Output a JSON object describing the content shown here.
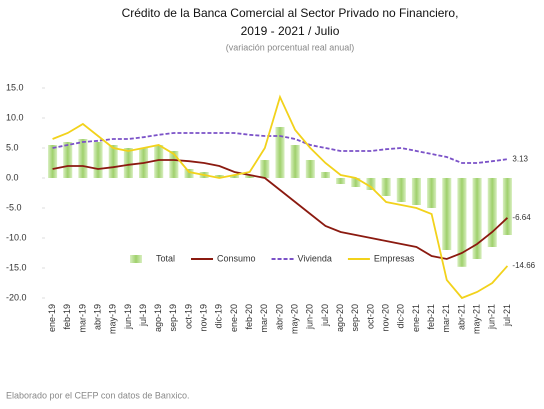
{
  "chart_data": {
    "type": "bar_line",
    "title": "Crédito de la Banca Comercial al Sector Privado no Financiero,",
    "subtitle": "2019 - 2021 / Julio",
    "y_label": "(variación porcentual real anual)",
    "source": "Elaborado por el CEFP con datos de Banxico.",
    "categories": [
      "ene-19",
      "feb-19",
      "mar-19",
      "abr-19",
      "may-19",
      "jun-19",
      "jul-19",
      "ago-19",
      "sep-19",
      "oct-19",
      "nov-19",
      "dic-19",
      "ene-20",
      "feb-20",
      "mar-20",
      "abr-20",
      "may-20",
      "jun-20",
      "jul-20",
      "ago-20",
      "sep-20",
      "oct-20",
      "nov-20",
      "dic-20",
      "ene-21",
      "feb-21",
      "mar-21",
      "abr-21",
      "may-21",
      "jun-21",
      "jul-21"
    ],
    "ylim": [
      -20,
      15
    ],
    "yticks": [
      {
        "value": 15,
        "label": "15.0"
      },
      {
        "value": 10,
        "label": "10.0"
      },
      {
        "value": 5,
        "label": "5.0"
      },
      {
        "value": 0,
        "label": "0.0"
      },
      {
        "value": -5,
        "label": "-5.0"
      },
      {
        "value": -10,
        "label": "-10.0"
      },
      {
        "value": -15,
        "label": "-15.0"
      },
      {
        "value": -20,
        "label": "-20.0"
      }
    ],
    "legend": "center",
    "series": [
      {
        "name": "Total",
        "kind": "bar",
        "color": "#b5dc8e",
        "values": [
          5.5,
          6,
          6.5,
          6,
          5.5,
          5,
          5,
          5.5,
          4.5,
          1.5,
          1,
          0.5,
          0.5,
          0.5,
          3,
          8.5,
          5.5,
          3,
          1,
          -1,
          -1.5,
          -2,
          -3,
          -4,
          -4.5,
          -5,
          -12,
          -14.8,
          -13.5,
          -11.5,
          -9.5
        ]
      },
      {
        "name": "Consumo",
        "kind": "line",
        "color": "#8b1a10",
        "values": [
          1.5,
          2,
          2,
          1.5,
          1.8,
          2.2,
          2.5,
          3,
          3,
          2.8,
          2.5,
          2,
          1,
          0.5,
          0,
          -2,
          -4,
          -6,
          -8,
          -9,
          -9.5,
          -10,
          -10.5,
          -11,
          -11.5,
          -13,
          -13.5,
          -12.5,
          -11,
          -9,
          -6.64
        ],
        "value_labels": [
          null,
          null,
          null,
          null,
          null,
          null,
          null,
          null,
          null,
          null,
          null,
          null,
          null,
          null,
          null,
          null,
          null,
          null,
          null,
          null,
          null,
          null,
          null,
          null,
          null,
          null,
          null,
          null,
          null,
          null,
          "-6.64"
        ]
      },
      {
        "name": "Vivienda",
        "kind": "dashed",
        "color": "#7b52c8",
        "values": [
          5,
          5.5,
          6,
          6.2,
          6.5,
          6.5,
          6.8,
          7.2,
          7.5,
          7.5,
          7.5,
          7.5,
          7.5,
          7.2,
          7,
          7,
          6.5,
          5.5,
          5,
          4.5,
          4.5,
          4.5,
          4.8,
          5,
          4.5,
          4,
          3.5,
          2.5,
          2.5,
          2.8,
          3.13
        ],
        "value_labels": [
          null,
          null,
          null,
          null,
          null,
          null,
          null,
          null,
          null,
          null,
          null,
          null,
          null,
          null,
          null,
          null,
          null,
          null,
          null,
          null,
          null,
          null,
          null,
          null,
          null,
          null,
          null,
          null,
          null,
          null,
          "3.13"
        ]
      },
      {
        "name": "Empresas",
        "kind": "line",
        "color": "#f2d21b",
        "values": [
          6.5,
          7.5,
          9,
          7,
          5,
          4.5,
          5,
          5.5,
          4,
          1,
          0.5,
          0,
          0.5,
          1,
          5,
          13.5,
          8,
          5,
          2.5,
          0.5,
          0,
          -1.5,
          -4,
          -4.5,
          -5,
          -6,
          -17,
          -20,
          -19,
          -17.5,
          -14.66
        ],
        "value_labels": [
          null,
          null,
          null,
          null,
          null,
          null,
          null,
          null,
          null,
          null,
          null,
          null,
          null,
          null,
          null,
          null,
          null,
          null,
          null,
          null,
          null,
          null,
          null,
          null,
          null,
          null,
          null,
          null,
          null,
          null,
          "-14.66"
        ]
      }
    ]
  }
}
